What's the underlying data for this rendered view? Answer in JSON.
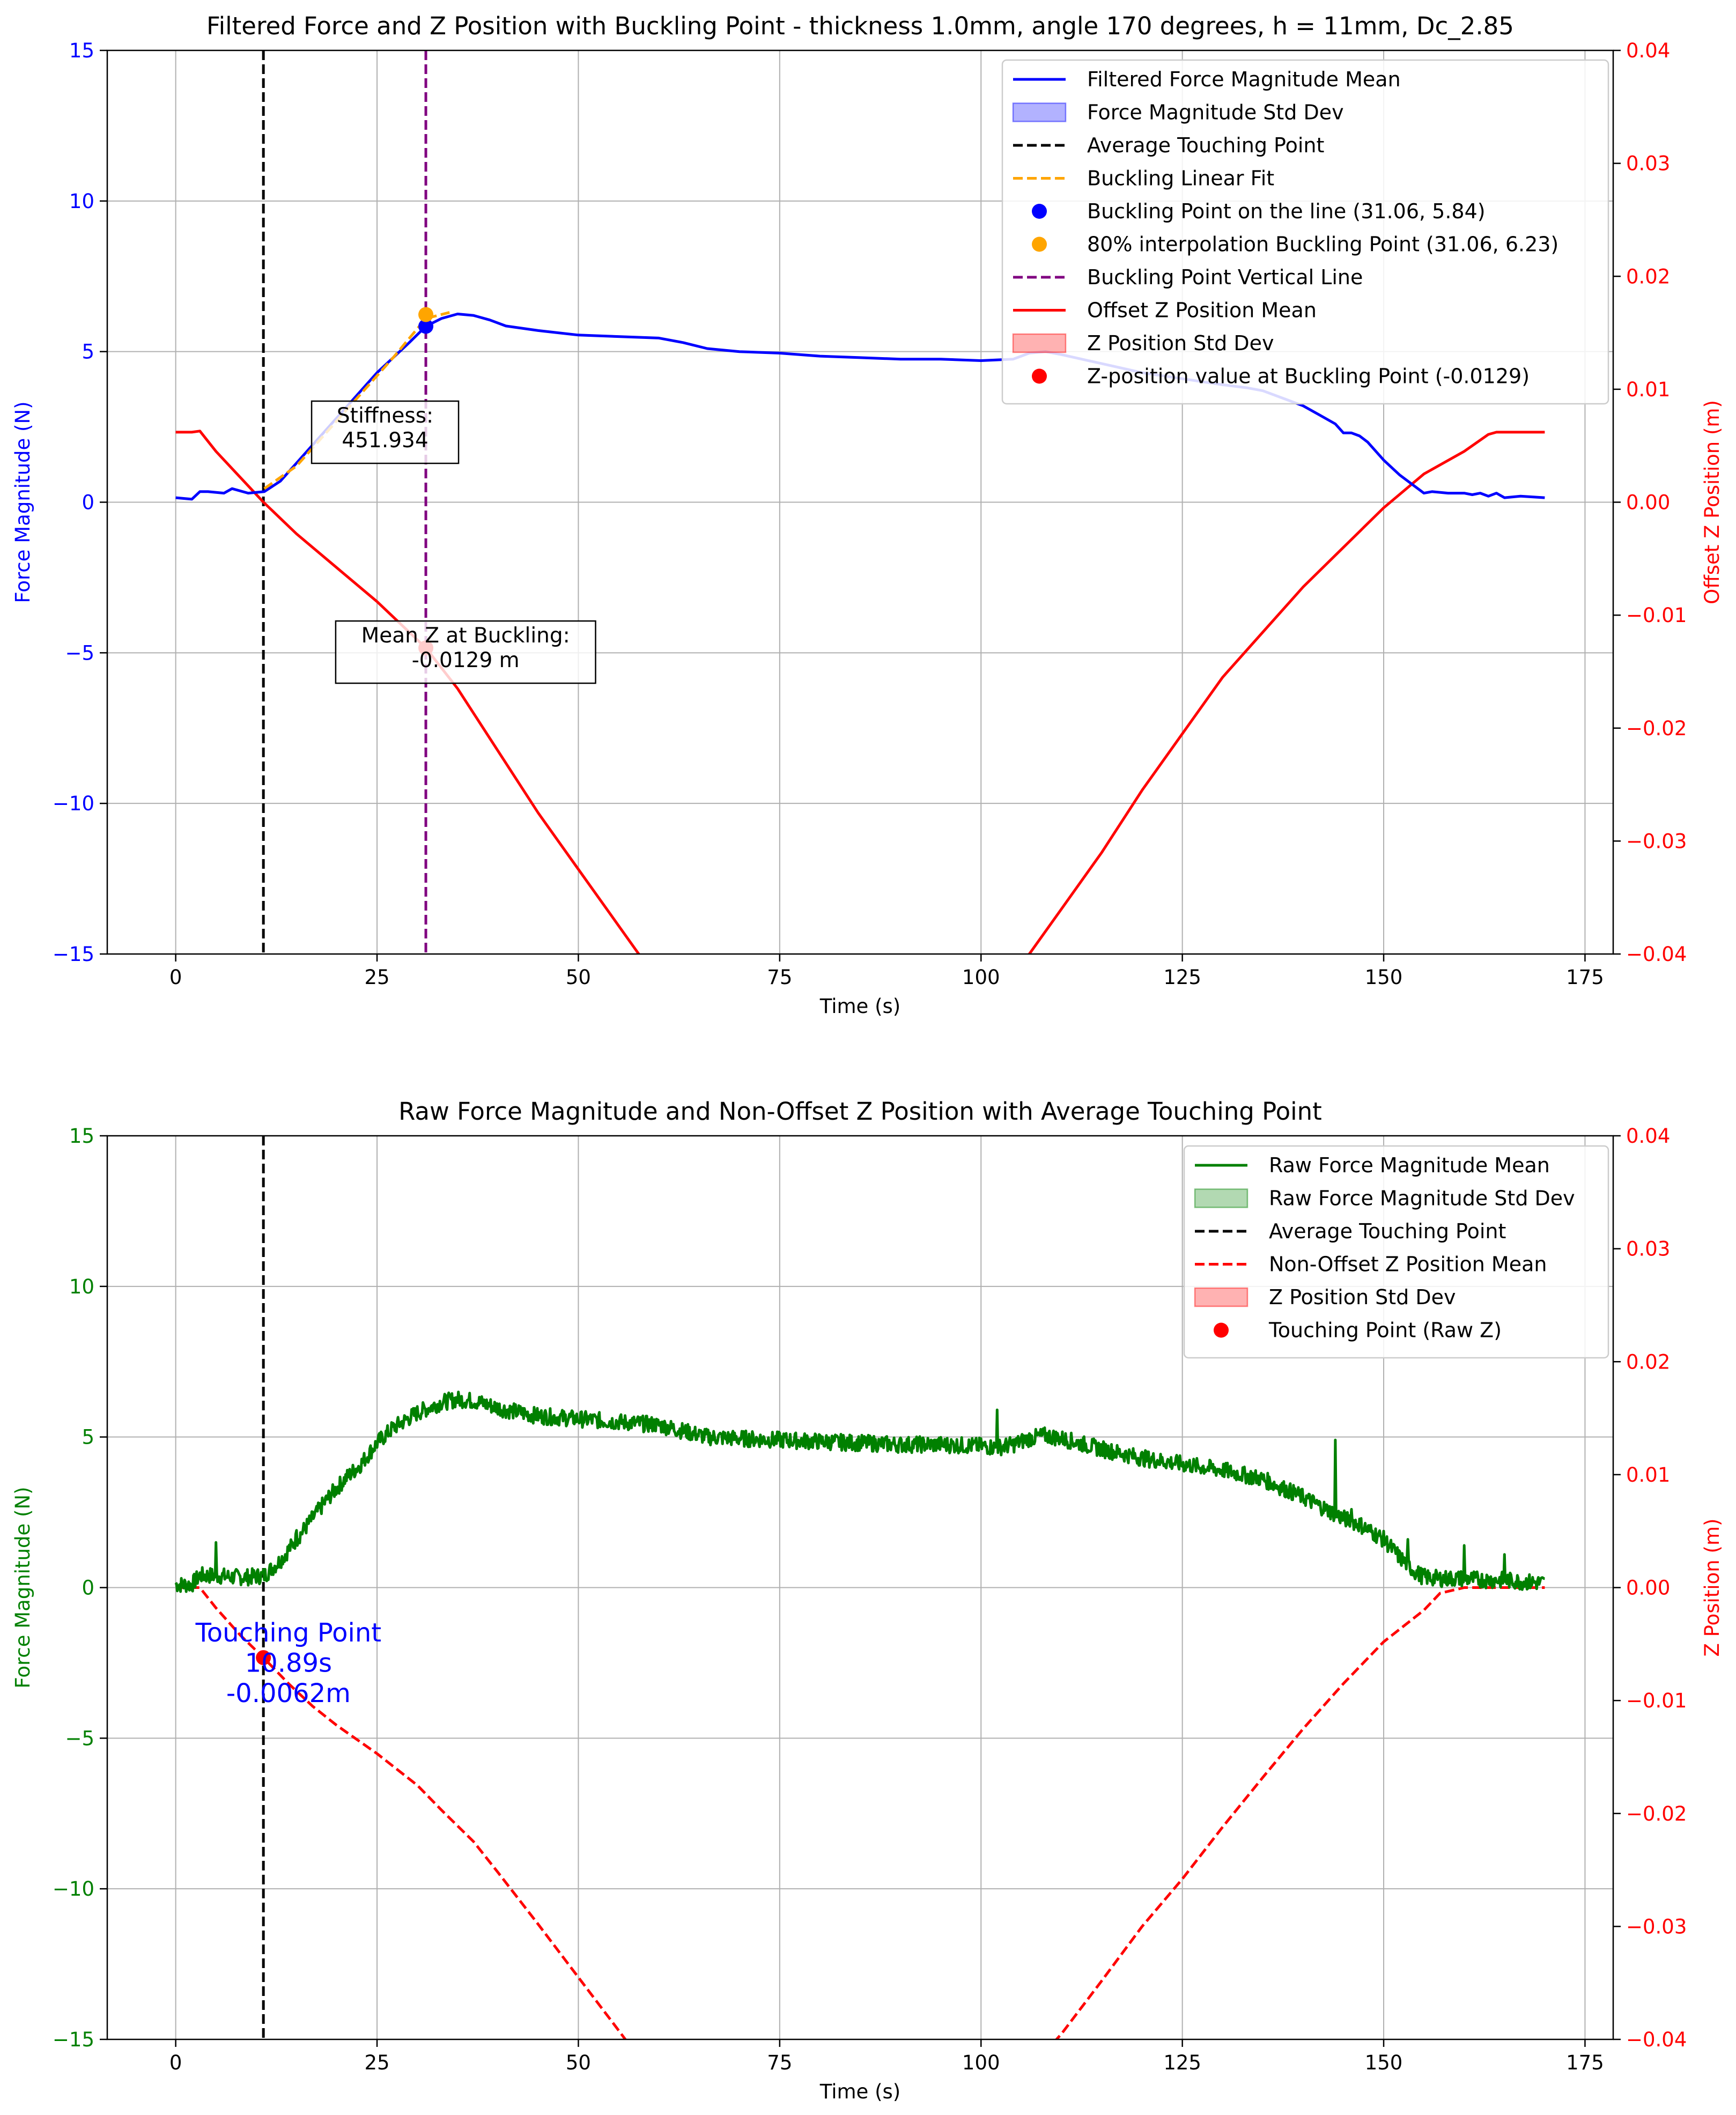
{
  "chart_data": [
    {
      "type": "line",
      "title": "Filtered Force and Z Position with Buckling Point - thickness 1.0mm, angle 170 degrees, h = 11mm, Dc_2.85",
      "xlabel": "Time (s)",
      "ylabel": "Force Magnitude (N)",
      "y2label": "Offset Z Position (m)",
      "xlim": [
        -8.5,
        178.5
      ],
      "ylim": [
        -15,
        15
      ],
      "y2lim": [
        -0.04,
        0.04
      ],
      "xticks": [
        0,
        25,
        50,
        75,
        100,
        125,
        150,
        175
      ],
      "xtick_labels": [
        "0",
        "25",
        "50",
        "75",
        "100",
        "125",
        "150",
        "175"
      ],
      "yticks": [
        -15,
        -10,
        -5,
        0,
        5,
        10,
        15
      ],
      "ytick_labels": [
        "−15",
        "−10",
        "−5",
        "0",
        "5",
        "10",
        "15"
      ],
      "y2ticks": [
        -0.04,
        -0.03,
        -0.02,
        -0.01,
        0,
        0.01,
        0.02,
        0.03,
        0.04
      ],
      "y2tick_labels": [
        "−0.04",
        "−0.03",
        "−0.02",
        "−0.01",
        "0.00",
        "0.01",
        "0.02",
        "0.03",
        "0.04"
      ],
      "grid": true,
      "legend_position": "upper-right",
      "legend": [
        {
          "label": "Filtered Force Magnitude Mean",
          "kind": "line",
          "color": "#0000ff"
        },
        {
          "label": "Force Magnitude Std Dev",
          "kind": "patch",
          "color": "#0000ff"
        },
        {
          "label": "Average Touching Point",
          "kind": "dashed",
          "color": "#000000"
        },
        {
          "label": "Buckling Linear Fit",
          "kind": "dashed",
          "color": "#ffa500"
        },
        {
          "label": "Buckling Point on the line (31.06, 5.84)",
          "kind": "dot",
          "color": "#0000ff"
        },
        {
          "label": "80% interpolation Buckling Point (31.06, 6.23)",
          "kind": "dot",
          "color": "#ffa500"
        },
        {
          "label": "Buckling Point Vertical Line",
          "kind": "dashed",
          "color": "#800080"
        },
        {
          "label": "Offset Z Position Mean",
          "kind": "line",
          "color": "#ff0000"
        },
        {
          "label": "Z Position Std Dev",
          "kind": "patch",
          "color": "#ff0000"
        },
        {
          "label": "Z-position value at Buckling Point (-0.0129)",
          "kind": "dot",
          "color": "#ff0000"
        }
      ],
      "series": {
        "force": {
          "color": "#0000ff",
          "x": [
            0,
            2,
            3,
            4,
            6,
            7,
            9,
            11,
            13,
            15,
            17,
            19,
            21,
            23,
            25,
            27,
            29,
            31.06,
            33,
            35,
            37,
            39,
            41,
            45,
            50,
            55,
            60,
            63,
            66,
            70,
            75,
            80,
            85,
            90,
            95,
            100,
            104,
            106,
            108,
            110,
            115,
            120,
            125,
            130,
            133,
            135,
            138,
            140,
            142,
            144,
            145,
            146,
            147,
            148,
            150,
            152,
            154,
            155,
            156,
            158,
            160,
            161,
            162,
            163,
            164,
            165,
            167,
            170
          ],
          "y": [
            0.15,
            0.1,
            0.35,
            0.35,
            0.3,
            0.45,
            0.3,
            0.35,
            0.7,
            1.3,
            1.9,
            2.5,
            3.1,
            3.7,
            4.3,
            4.8,
            5.3,
            5.84,
            6.1,
            6.25,
            6.2,
            6.05,
            5.85,
            5.7,
            5.55,
            5.5,
            5.45,
            5.3,
            5.1,
            5.0,
            4.95,
            4.85,
            4.8,
            4.75,
            4.75,
            4.7,
            4.75,
            4.95,
            5.0,
            4.9,
            4.6,
            4.3,
            4.1,
            3.9,
            3.8,
            3.7,
            3.4,
            3.2,
            2.9,
            2.6,
            2.3,
            2.3,
            2.2,
            2.0,
            1.4,
            0.9,
            0.5,
            0.3,
            0.35,
            0.3,
            0.3,
            0.25,
            0.3,
            0.2,
            0.3,
            0.15,
            0.2,
            0.15
          ]
        },
        "fit": {
          "color": "#ffa500",
          "x": [
            11,
            15,
            19,
            23,
            27,
            31.06,
            34
          ],
          "y": [
            0.45,
            1.2,
            2.4,
            3.6,
            4.8,
            6.1,
            6.3
          ]
        },
        "z": {
          "color": "#ff0000",
          "x": [
            0,
            2,
            3,
            5,
            10.9,
            15,
            20,
            25,
            31.06,
            35,
            40,
            45,
            50,
            55,
            60,
            62,
            63,
            65,
            100,
            104,
            106,
            110,
            115,
            120,
            125,
            130,
            135,
            140,
            145,
            150,
            155,
            160,
            163,
            164,
            170
          ],
          "y": [
            0.0062,
            0.0062,
            0.0063,
            0.0045,
            0.0,
            -0.0028,
            -0.0058,
            -0.0088,
            -0.0129,
            -0.0165,
            -0.022,
            -0.0275,
            -0.0325,
            -0.0375,
            -0.0425,
            -0.0445,
            -0.045,
            -0.046,
            -0.046,
            -0.042,
            -0.04,
            -0.036,
            -0.031,
            -0.0255,
            -0.0205,
            -0.0155,
            -0.0115,
            -0.0075,
            -0.004,
            -0.0005,
            0.0025,
            0.0045,
            0.006,
            0.0062,
            0.0062
          ]
        }
      },
      "vlines": [
        {
          "x": 10.89,
          "color": "#000000"
        },
        {
          "x": 31.06,
          "color": "#800080"
        }
      ],
      "points": [
        {
          "x": 31.06,
          "y": 5.84,
          "axis": "left",
          "color": "#0000ff"
        },
        {
          "x": 31.06,
          "y": 6.23,
          "axis": "left",
          "color": "#ffa500"
        },
        {
          "x": 31.06,
          "y": -0.0129,
          "axis": "right",
          "color": "#ff0000"
        }
      ],
      "annotations": [
        {
          "lines": [
            "Stiffness:",
            "451.934"
          ],
          "x": 26,
          "y": 3.0
        },
        {
          "lines": [
            "Mean Z at Buckling:",
            "-0.0129 m"
          ],
          "x": 36,
          "y": -4.3
        }
      ]
    },
    {
      "type": "line",
      "title": "Raw Force Magnitude and Non-Offset Z Position with Average Touching Point",
      "xlabel": "Time (s)",
      "ylabel": "Force Magnitude (N)",
      "y2label": "Z Position (m)",
      "xlim": [
        -8.5,
        178.5
      ],
      "ylim": [
        -15,
        15
      ],
      "y2lim": [
        -0.04,
        0.04
      ],
      "xticks": [
        0,
        25,
        50,
        75,
        100,
        125,
        150,
        175
      ],
      "xtick_labels": [
        "0",
        "25",
        "50",
        "75",
        "100",
        "125",
        "150",
        "175"
      ],
      "yticks": [
        -15,
        -10,
        -5,
        0,
        5,
        10,
        15
      ],
      "ytick_labels": [
        "−15",
        "−10",
        "−5",
        "0",
        "5",
        "10",
        "15"
      ],
      "y2ticks": [
        -0.04,
        -0.03,
        -0.02,
        -0.01,
        0,
        0.01,
        0.02,
        0.03,
        0.04
      ],
      "y2tick_labels": [
        "−0.04",
        "−0.03",
        "−0.02",
        "−0.01",
        "0.00",
        "0.01",
        "0.02",
        "0.03",
        "0.04"
      ],
      "grid": true,
      "legend_position": "upper-right",
      "legend": [
        {
          "label": "Raw Force Magnitude Mean",
          "kind": "line",
          "color": "#008000"
        },
        {
          "label": "Raw Force Magnitude Std Dev",
          "kind": "patch",
          "color": "#008000"
        },
        {
          "label": "Average Touching Point",
          "kind": "dashed",
          "color": "#000000"
        },
        {
          "label": "Non-Offset Z Position Mean",
          "kind": "dashed",
          "color": "#ff0000"
        },
        {
          "label": "Z Position Std Dev",
          "kind": "patch",
          "color": "#ff0000"
        },
        {
          "label": "Touching Point (Raw Z)",
          "kind": "dot",
          "color": "#ff0000"
        }
      ],
      "series": {
        "force": {
          "color": "#008000",
          "noisy": true,
          "x": [
            0,
            2,
            3,
            5,
            7,
            9,
            11,
            13,
            15,
            17,
            19,
            21,
            23,
            25,
            27,
            30,
            33,
            35,
            37,
            39,
            41,
            45,
            50,
            55,
            60,
            63,
            66,
            70,
            75,
            80,
            85,
            90,
            95,
            100,
            102,
            104,
            106,
            108,
            110,
            115,
            120,
            125,
            130,
            135,
            140,
            145,
            147,
            150,
            152,
            154,
            155,
            157,
            160,
            163,
            165,
            167,
            170
          ],
          "y": [
            0.1,
            0.1,
            0.4,
            0.4,
            0.35,
            0.35,
            0.4,
            0.9,
            1.6,
            2.3,
            3.0,
            3.6,
            4.1,
            4.8,
            5.3,
            5.8,
            6.15,
            6.25,
            6.2,
            6.05,
            5.9,
            5.7,
            5.6,
            5.5,
            5.4,
            5.2,
            5.0,
            4.95,
            4.9,
            4.85,
            4.8,
            4.75,
            4.75,
            4.7,
            4.65,
            4.75,
            4.95,
            5.05,
            4.95,
            4.6,
            4.3,
            4.1,
            3.9,
            3.6,
            3.0,
            2.3,
            2.1,
            1.6,
            1.0,
            0.5,
            0.35,
            0.3,
            0.3,
            0.25,
            0.25,
            0.2,
            0.15
          ]
        },
        "z": {
          "color": "#ff0000",
          "dashed": true,
          "x": [
            0,
            3,
            5,
            8,
            10.89,
            14,
            17,
            20,
            25,
            30,
            33,
            37,
            40,
            45,
            50,
            55,
            60,
            100,
            105,
            110,
            115,
            120,
            125,
            130,
            135,
            140,
            145,
            150,
            155,
            157,
            160,
            163,
            170
          ],
          "y": [
            0.0,
            0.0,
            -0.0018,
            -0.0042,
            -0.0062,
            -0.0085,
            -0.0105,
            -0.0122,
            -0.0147,
            -0.0175,
            -0.0197,
            -0.0225,
            -0.0252,
            -0.0298,
            -0.0345,
            -0.0392,
            -0.044,
            -0.044,
            -0.0435,
            -0.0395,
            -0.0348,
            -0.03,
            -0.0258,
            -0.0212,
            -0.0168,
            -0.0125,
            -0.0085,
            -0.0048,
            -0.002,
            -0.0005,
            0.0,
            0.0,
            0.0
          ]
        }
      },
      "vlines": [
        {
          "x": 10.89,
          "color": "#000000"
        }
      ],
      "points": [
        {
          "x": 10.89,
          "y": -0.0062,
          "axis": "right",
          "color": "#ff0000"
        }
      ],
      "annotations": [
        {
          "lines": [
            "Touching Point",
            "10.89s",
            "-0.0062m"
          ],
          "x": 14,
          "y": -1.3,
          "color": "#0000ff",
          "boxed": false
        }
      ]
    }
  ]
}
